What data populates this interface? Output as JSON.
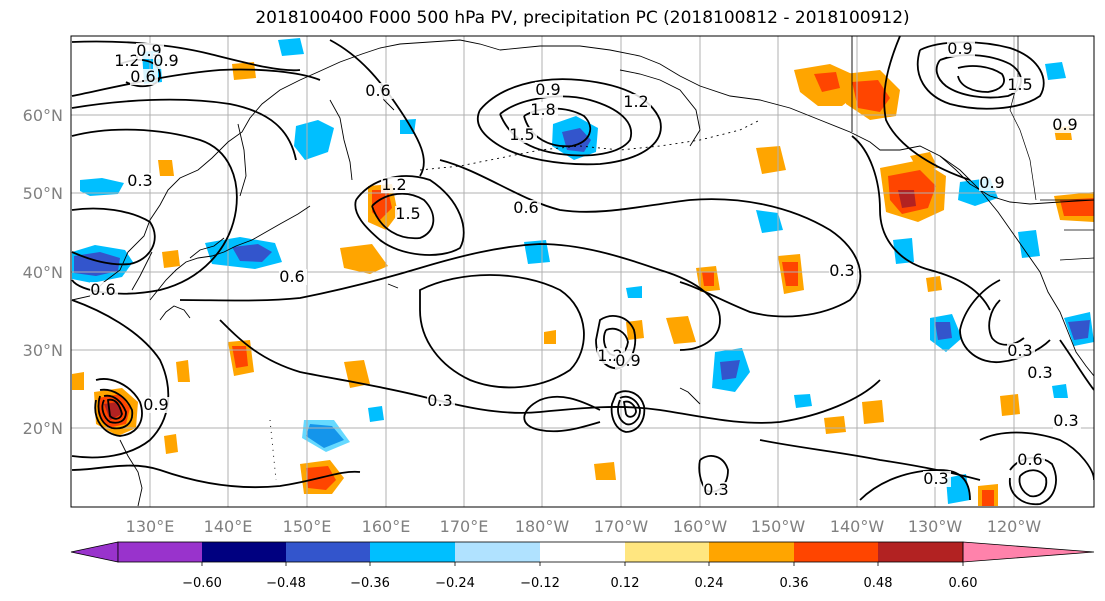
{
  "title": "2018100400 F000 500 hPa PV, precipitation PC (2018100812 - 2018100912)",
  "map": {
    "lat_labels": [
      "60°N",
      "50°N",
      "40°N",
      "30°N",
      "20°N"
    ],
    "lon_labels": [
      "130°E",
      "140°E",
      "150°E",
      "160°E",
      "170°E",
      "180°W",
      "170°W",
      "160°W",
      "150°W",
      "140°W",
      "130°W",
      "120°W"
    ],
    "contour_labels": [
      "1.2",
      "0.9",
      "0.9",
      "0.6",
      "0.3",
      "1.2",
      "1.5",
      "0.6",
      "0.6",
      "1.8",
      "0.9",
      "1.5",
      "1.2",
      "0.3",
      "0.6",
      "1.2",
      "0.9",
      "0.3",
      "0.3",
      "0.3",
      "0.9",
      "1.5",
      "0.9",
      "0.6",
      "0.9",
      "0.3",
      "0.3",
      "0.3",
      "0.6",
      "0.9"
    ],
    "colors": {
      "grid": "#b0b0b0",
      "coast": "#000000",
      "contour": "#000000"
    }
  },
  "colorbar": {
    "bins": [
      {
        "color": "#9933cc"
      },
      {
        "color": "#000080"
      },
      {
        "color": "#3355cc"
      },
      {
        "color": "#00bfff"
      },
      {
        "color": "#b0e2ff"
      },
      {
        "color": "#ffffff"
      },
      {
        "color": "#ffe680"
      },
      {
        "color": "#ffa500"
      },
      {
        "color": "#ff4500"
      },
      {
        "color": "#b22222"
      },
      {
        "color": "#ff82ab"
      }
    ],
    "tick_labels": [
      "−0.60",
      "−0.48",
      "−0.36",
      "−0.24",
      "−0.12",
      "0.12",
      "0.24",
      "0.36",
      "0.48",
      "0.60"
    ]
  }
}
